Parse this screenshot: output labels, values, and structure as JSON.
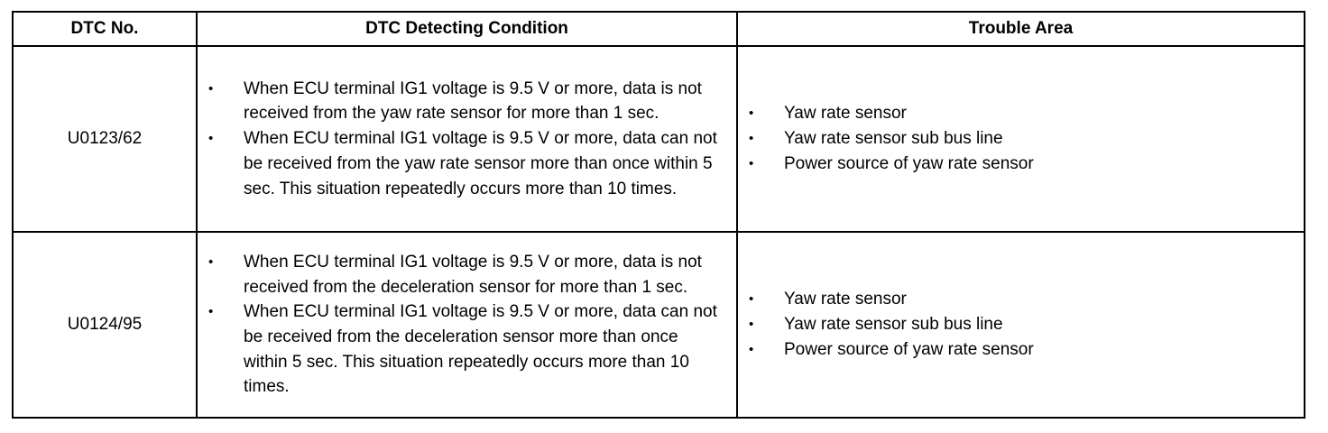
{
  "headers": {
    "dtc_no": "DTC No.",
    "condition": "DTC Detecting Condition",
    "trouble_area": "Trouble Area"
  },
  "bullet_glyph": "•",
  "rows": [
    {
      "code": "U0123/62",
      "conditions": [
        "When ECU terminal IG1 voltage is 9.5 V or more, data is not received from the yaw rate sensor for more than 1 sec.",
        "When ECU terminal IG1 voltage is 9.5 V or more, data can not be received from the yaw rate sensor more than once within 5 sec. This situation repeatedly occurs more than 10 times."
      ],
      "areas": [
        "Yaw rate sensor",
        "Yaw rate sensor sub bus line",
        "Power source of yaw rate sensor"
      ]
    },
    {
      "code": "U0124/95",
      "conditions": [
        "When ECU terminal IG1 voltage is 9.5 V or more, data is not received from the deceleration sensor for more than 1 sec.",
        "When ECU terminal IG1 voltage is 9.5 V or more, data can not be received from the deceleration sensor more than once within 5 sec. This situation repeatedly occurs more than 10 times."
      ],
      "areas": [
        "Yaw rate sensor",
        "Yaw rate sensor sub bus line",
        "Power source of yaw rate sensor"
      ]
    }
  ]
}
